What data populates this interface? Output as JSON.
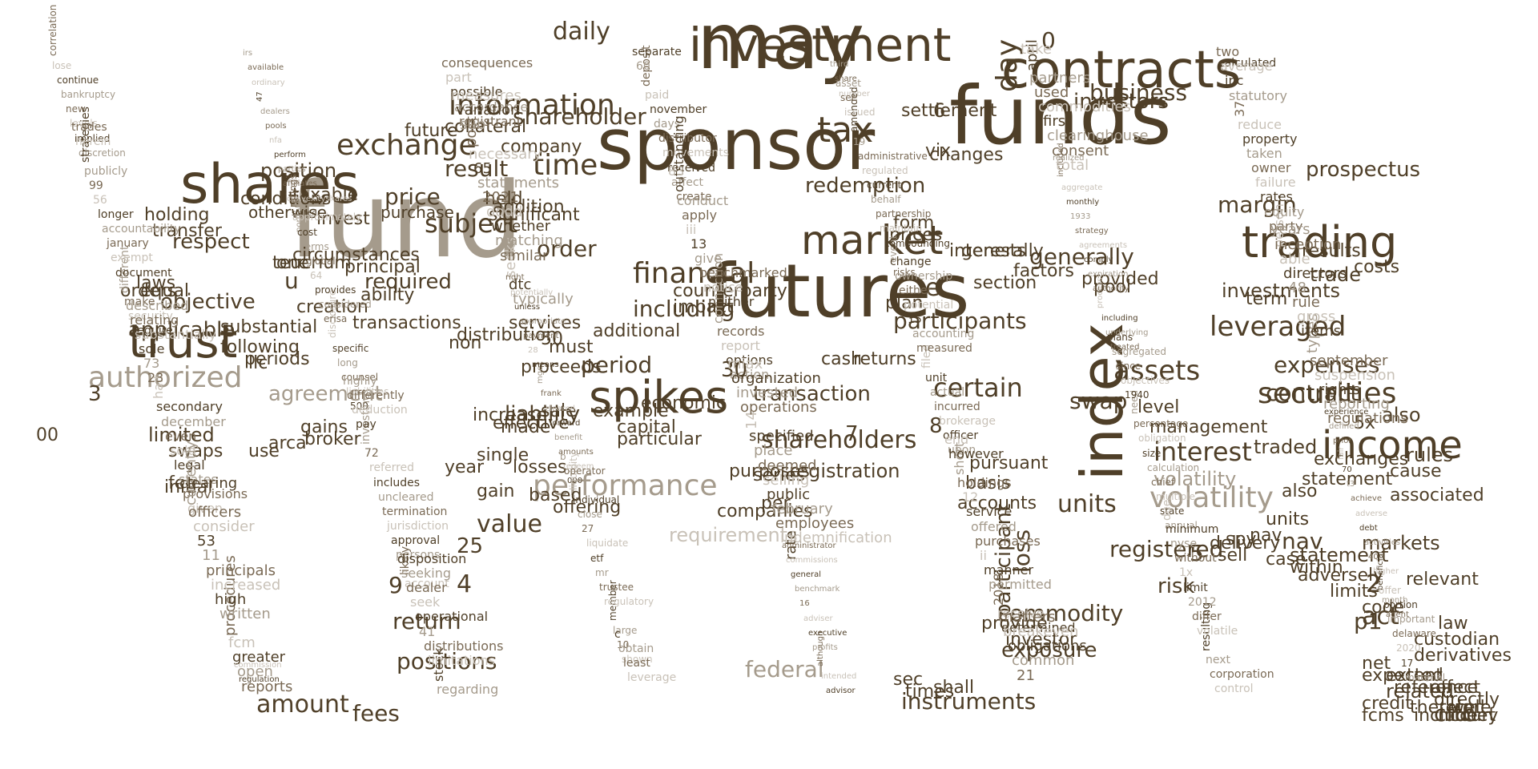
{
  "colors": {
    "primary": "#4f3f28",
    "mid": "#7a6a55",
    "light": "#a59b8c",
    "faint": "#c9c2b8"
  },
  "words": [
    "may",
    "funds",
    "sponsor",
    "fund",
    "futures",
    "index",
    "shares",
    "contracts",
    "investment",
    "trading",
    "market",
    "trust",
    "spikes",
    "income",
    "tax",
    "securities",
    "day",
    "certain",
    "performance",
    "interest",
    "financial",
    "authorized",
    "volatility",
    "leveraged",
    "assets",
    "exchange",
    "information",
    "time",
    "daily",
    "shareholders",
    "subject",
    "margin",
    "expenses",
    "shareholder",
    "prospectus",
    "generally",
    "units",
    "business",
    "redemption",
    "price",
    "order",
    "respect",
    "contract",
    "including",
    "participants",
    "position",
    "investors",
    "requirements",
    "value",
    "result",
    "agreement",
    "applicable",
    "objective",
    "nav",
    "required",
    "act",
    "federal",
    "registration",
    "commodity",
    "participant",
    "cftc",
    "2",
    "p1",
    "0",
    "3",
    "4",
    "5",
    "6",
    "7",
    "8",
    "9",
    "25",
    "30",
    "u",
    "e",
    "loss",
    "swap",
    "period",
    "liability",
    "transaction",
    "fees",
    "amount",
    "positions",
    "registered",
    "risk",
    "return",
    "instruments",
    "exposure",
    "statement",
    "markets",
    "also",
    "related",
    "traded",
    "rules",
    "volatility",
    "investments",
    "trade",
    "costs",
    "results",
    "term",
    "pool",
    "provided",
    "factors",
    "section",
    "generally",
    "changes",
    "settlement",
    "vix",
    "form",
    "prices",
    "interests",
    "plan",
    "impact",
    "counterparty",
    "held",
    "significant",
    "addition",
    "company",
    "collateral",
    "future",
    "taxable",
    "invest",
    "otherwise",
    "conditions",
    "purchase",
    "limited",
    "swaps",
    "fee",
    "initial",
    "arca",
    "use",
    "broker",
    "gains",
    "llc",
    "00",
    "periods",
    "following",
    "substantial",
    "orders",
    "equal",
    "laws",
    "holding",
    "transfer",
    "one",
    "circumstances",
    "teucrium",
    "principal",
    "ability",
    "creation",
    "transactions",
    "non",
    "services",
    "additional",
    "economic",
    "example",
    "sale",
    "50",
    "must",
    "proceeds",
    "distribution",
    "made",
    "increase",
    "single",
    "year",
    "gain",
    "effective",
    "losses",
    "based",
    "offering",
    "particular",
    "capital",
    "companies",
    "purposes",
    "series",
    "per",
    "cash",
    "returns",
    "sec",
    "times",
    "shall",
    "investor",
    "provide",
    "accounts",
    "basis",
    "pursuant",
    "level",
    "management",
    "delivery",
    "nav",
    "units",
    "also",
    "statement",
    "exchanges",
    "5x",
    "cause",
    "associated",
    "relevant",
    "law",
    "net",
    "expected",
    "spy",
    "sell",
    "case",
    "within",
    "adversely",
    "limits",
    "code",
    "extent",
    "custodian",
    "derivatives",
    "credit",
    "fcms",
    "include",
    "reference",
    "effect",
    "therefore",
    "directly",
    "well",
    "money",
    "court",
    "agent",
    "discretion",
    "require",
    "given",
    "reports",
    "portfolio",
    "500",
    "account",
    "registrant",
    "typically",
    "000",
    "shown",
    "create",
    "action",
    "rate",
    "number",
    "risks",
    "upon",
    "determined",
    "total",
    "treated",
    "annual",
    "calculated",
    "person",
    "regulations",
    "month",
    "implied",
    "security",
    "provisions",
    "open",
    "stated",
    "liabilities",
    "likely",
    "accordance",
    "dtc",
    "redeem",
    "10",
    "affect",
    "options",
    "indemnification",
    "share",
    "event",
    "officer",
    "receive",
    "consent",
    "underlying",
    "state",
    "control",
    "party",
    "reporting",
    "beneficial",
    "levels",
    "make",
    "states",
    "greater",
    "convexityshares",
    "counsel",
    "persons",
    "possible",
    "seeks",
    "amounts",
    "large",
    "received",
    "report",
    "employees",
    "third",
    "compounding",
    "brokerage",
    "2018",
    "clearinghouse",
    "including",
    "multiple",
    "corporation",
    "equity",
    "rights",
    "higher",
    "new",
    "different",
    "legal",
    "fcm",
    "affiliates",
    "long",
    "approval",
    "part",
    "similar",
    "benefit",
    "member",
    "movements",
    "records",
    "february",
    "advisor",
    "maintain",
    "incurred",
    "permitted",
    "first",
    "process",
    "chief",
    "next",
    "rates",
    "suspension",
    "40",
    "bankruptcy",
    "document",
    "sold",
    "procedures",
    "parties",
    "specific",
    "jurisdiction",
    "consequences",
    "matching",
    "forward",
    "regulatory",
    "distributor",
    "connection",
    "public",
    "intended",
    "partnership",
    "actual",
    "manner",
    "commodities",
    "authority",
    "calculation",
    "resulting",
    "failure",
    "september",
    "activities",
    "continue",
    "exempt",
    "even",
    "written",
    "perform",
    "disclosure",
    "termination",
    "regarding",
    "whether",
    "cleared",
    "trustee",
    "days",
    "neither",
    "selling",
    "although",
    "behalf",
    "unit",
    "ii",
    "used",
    "expiration",
    "size",
    "volatile",
    "owner",
    "types",
    "debt",
    "lose",
    "january",
    "december",
    "high",
    "nfa",
    "erisa",
    "uncleared",
    "stock",
    "dodd",
    "frank",
    "mr",
    "november",
    "notice",
    "deemed",
    "profits",
    "current",
    "filed",
    "purchases",
    "partners",
    "comply",
    "obligation",
    "differ",
    "taken",
    "items",
    "adverse",
    "correlation",
    "accountability",
    "secondary",
    "increased",
    "pools",
    "considered",
    "includes",
    "limitations",
    "2021",
    "mgex",
    "etf",
    "paid",
    "benchmarked",
    "place",
    "executive",
    "regulated",
    "measured",
    "offered",
    "april",
    "agreements",
    "percentage",
    "2012",
    "property",
    "gross",
    "achieve",
    "material",
    "longer",
    "half",
    "principals",
    "dealers",
    "provides",
    "referred",
    "distributions",
    "statements",
    "means",
    "liquidate",
    "deposit",
    "give",
    "specified",
    "adviser",
    "administrative",
    "accounting",
    "service",
    "take",
    "strategy",
    "need",
    "limit",
    "reduce",
    "rule",
    "t3",
    "17",
    "56",
    "23",
    "11",
    "47",
    "64",
    "72",
    "41",
    "65",
    "28",
    "27",
    "60",
    "13",
    "14",
    "16",
    "19",
    "15",
    "12",
    "21",
    "1933",
    "1940",
    "1x",
    "37",
    "48",
    "70",
    "2020",
    "99",
    "73",
    "53",
    "ordinary",
    "global",
    "investing",
    "operational",
    "necessary",
    "payment",
    "close",
    "separate",
    "iii",
    "operations",
    "benchmark",
    "amended",
    "potential",
    "holdings",
    "common",
    "monthly",
    "objectives",
    "without",
    "statutory",
    "directors",
    "fair",
    "delaware",
    "publicly",
    "sole",
    "consider",
    "available",
    "terms",
    "pay",
    "seek",
    "post",
    "appropriate",
    "individual",
    "leverage",
    "apply",
    "invested",
    "general",
    "issued",
    "either",
    "short",
    "obligations",
    "aggregate",
    "since",
    "nyse",
    "inc",
    "able",
    "prior",
    "important",
    "strategies",
    "substantially",
    "officers",
    "irs",
    "cost",
    "deduction",
    "dealer",
    "sub",
    "unless",
    "liquidity",
    "least",
    "conduct",
    "organization",
    "commissions",
    "see",
    "ownership",
    "however",
    "breakeven",
    "included",
    "segregated",
    "minimum",
    "average",
    "inception",
    "defined",
    "portion",
    "herein",
    "relating",
    "currently",
    "regulation",
    "approximately",
    "differently",
    "seeking",
    "variation",
    "potentially",
    "operator",
    "obtain",
    "outstanding",
    "miax",
    "administrator",
    "asset",
    "change",
    "end",
    "matters",
    "realized",
    "plans",
    "due",
    "two",
    "years",
    "experience",
    "offer",
    "trades",
    "described",
    "clearing",
    "commission",
    "ratings",
    "highly",
    "disposition",
    "measures",
    "right",
    "b",
    "c",
    "83"
  ]
}
